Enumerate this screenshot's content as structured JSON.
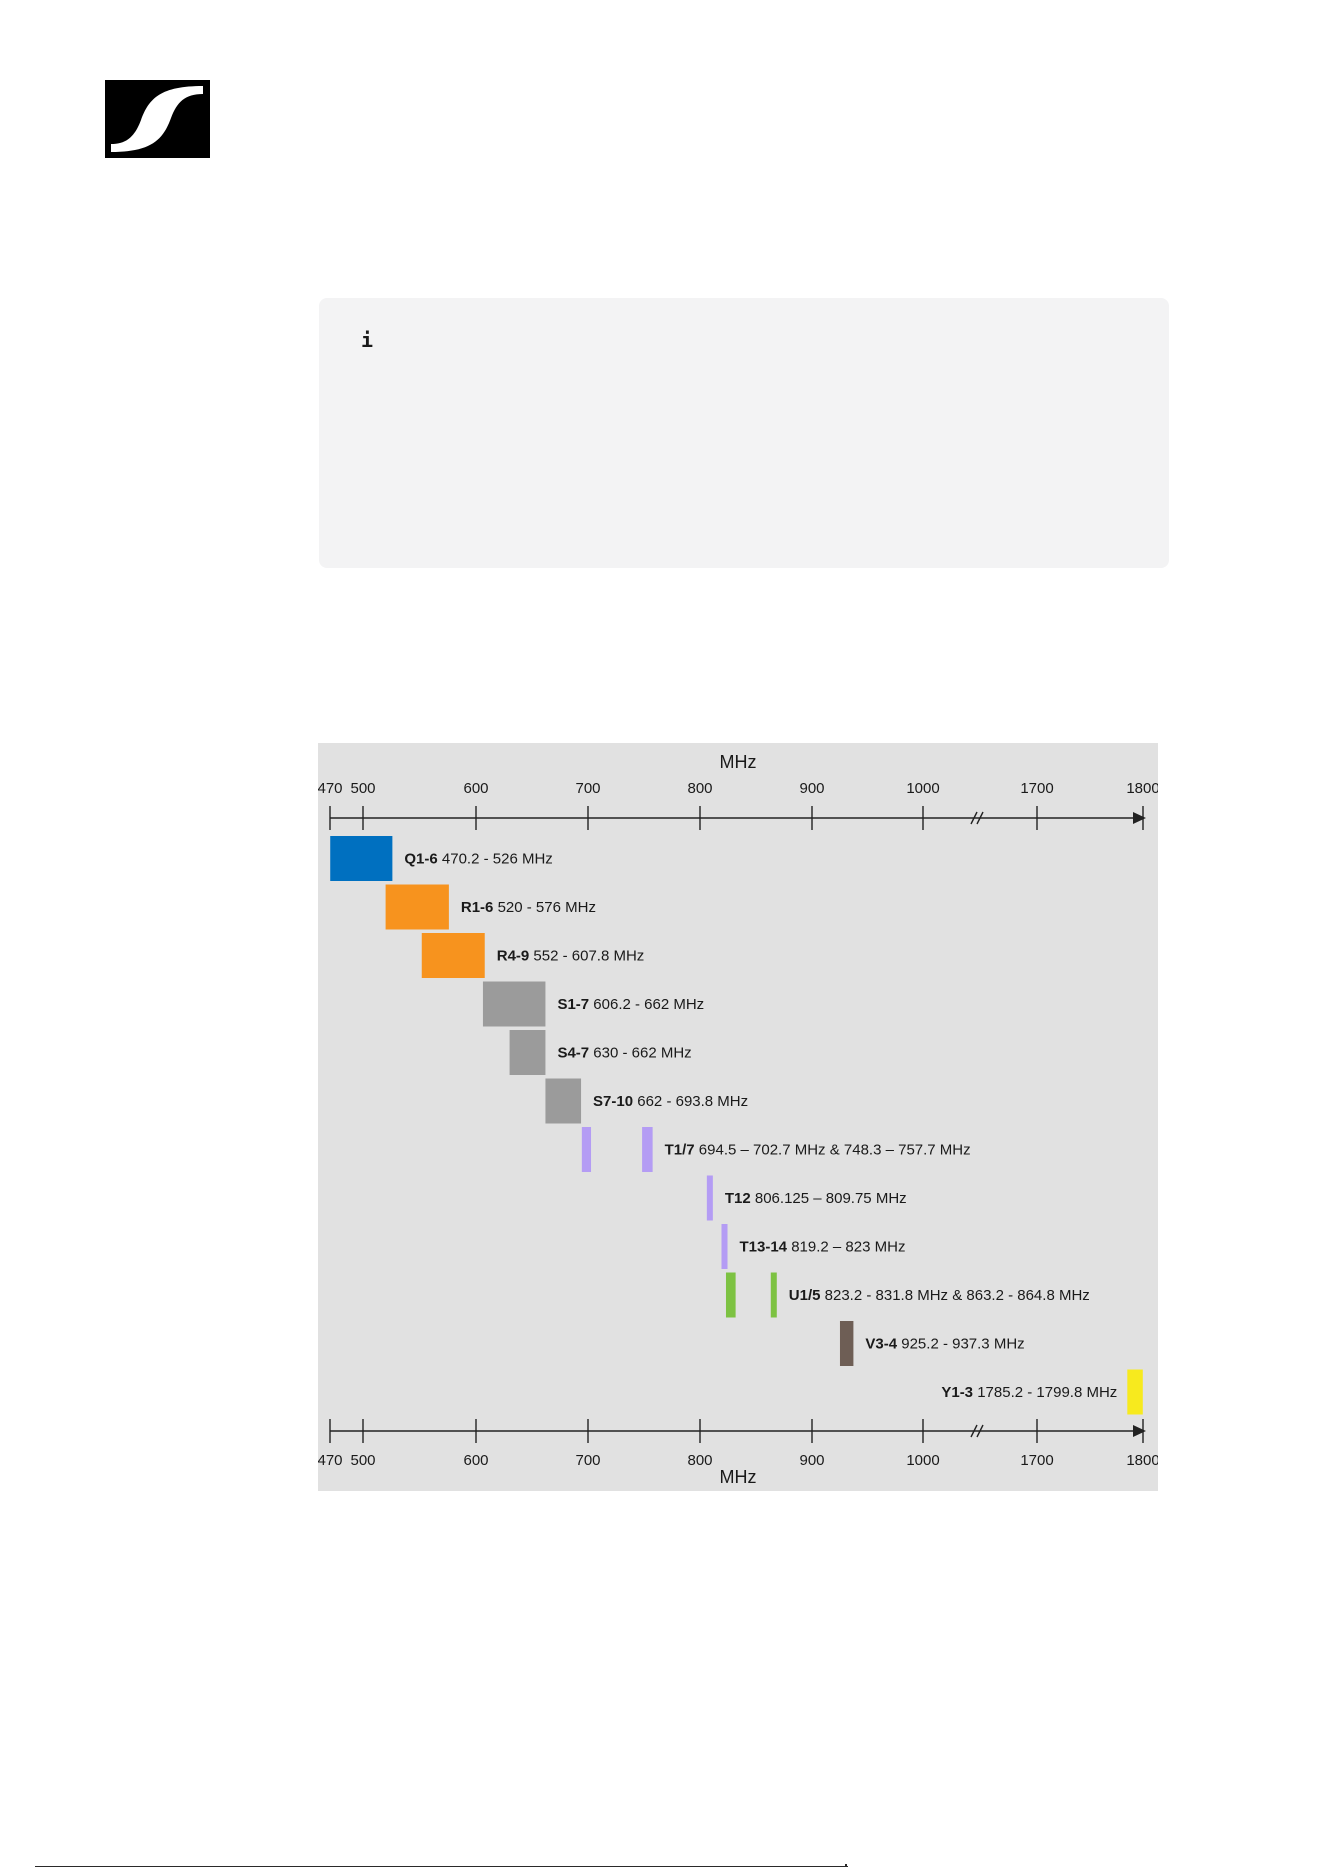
{
  "brand": {
    "logo_icon": "sennheiser-logo-icon"
  },
  "info_note": {
    "icon": "info-icon",
    "glyph": "i"
  },
  "chart_data": {
    "type": "bar",
    "orientation": "horizontal-range",
    "axis_label": "MHz",
    "ticks": [
      "470",
      "500",
      "600",
      "700",
      "800",
      "900",
      "1000",
      "1700",
      "1800"
    ],
    "axis_break": "//",
    "grid": false,
    "bands": [
      {
        "code": "Q1-6",
        "range": "470.2 - 526 MHz",
        "segments": [
          [
            470.2,
            526
          ]
        ],
        "color": "#0070c0"
      },
      {
        "code": "R1-6",
        "range": "520 - 576 MHz",
        "segments": [
          [
            520,
            576
          ]
        ],
        "color": "#f7931e"
      },
      {
        "code": "R4-9",
        "range": "552 - 607.8 MHz",
        "segments": [
          [
            552,
            607.8
          ]
        ],
        "color": "#f7931e"
      },
      {
        "code": "S1-7",
        "range": "606.2 - 662 MHz",
        "segments": [
          [
            606.2,
            662
          ]
        ],
        "color": "#9b9b9b"
      },
      {
        "code": "S4-7",
        "range": "630 - 662 MHz",
        "segments": [
          [
            630,
            662
          ]
        ],
        "color": "#9b9b9b"
      },
      {
        "code": "S7-10",
        "range": "662 - 693.8 MHz",
        "segments": [
          [
            662,
            693.8
          ]
        ],
        "color": "#9b9b9b"
      },
      {
        "code": "T1/7",
        "range": "694.5 – 702.7 MHz & 748.3 – 757.7 MHz",
        "segments": [
          [
            694.5,
            702.7
          ],
          [
            748.3,
            757.7
          ]
        ],
        "color": "#b49cf4"
      },
      {
        "code": "T12",
        "range": "806.125 – 809.75 MHz",
        "segments": [
          [
            806.125,
            809.75
          ]
        ],
        "color": "#b49cf4"
      },
      {
        "code": "T13-14",
        "range": "819.2 – 823 MHz",
        "segments": [
          [
            819.2,
            823
          ]
        ],
        "color": "#b49cf4"
      },
      {
        "code": "U1/5",
        "range": "823.2 - 831.8 MHz & 863.2 - 864.8 MHz",
        "segments": [
          [
            823.2,
            831.8
          ],
          [
            863.2,
            864.8
          ]
        ],
        "color": "#7dc242"
      },
      {
        "code": "V3-4",
        "range": "925.2 - 937.3 MHz",
        "segments": [
          [
            925.2,
            937.3
          ]
        ],
        "color": "#6e5e55"
      },
      {
        "code": "Y1-3",
        "range": "1785.2 - 1799.8 MHz",
        "segments": [
          [
            1785.2,
            1799.8
          ]
        ],
        "color": "#f7ea1e"
      }
    ]
  }
}
